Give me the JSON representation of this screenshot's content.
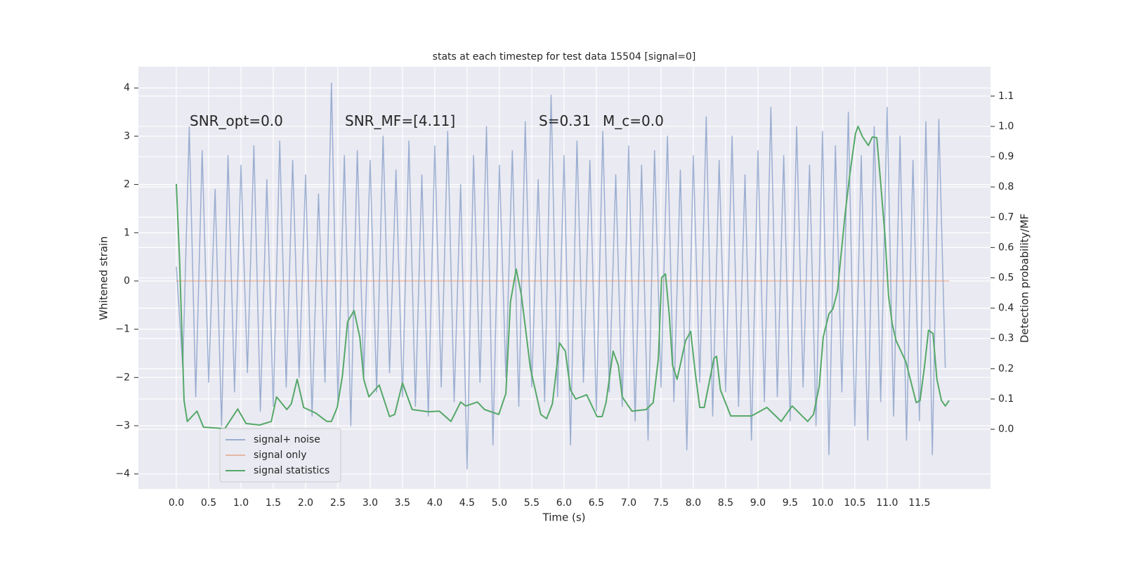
{
  "chart_data": {
    "type": "line",
    "title": "stats at each timestep for test data 15504 [signal=0]",
    "xlabel": "Time (s)",
    "ylabel": "Whitened strain",
    "y2label": "Detection probability/MF",
    "annotations": [
      "SNR_opt=0.0",
      "SNR_MF=[4.11]",
      "S=0.31",
      "M_c=0.0"
    ],
    "xlim": [
      -0.587,
      12.6
    ],
    "ylim": [
      -4.31,
      4.44
    ],
    "y2lim": [
      -0.197,
      1.197
    ],
    "xticks": [
      {
        "value": 0,
        "label": "0.0"
      },
      {
        "value": 0.5,
        "label": "0.5"
      },
      {
        "value": 1,
        "label": "1.0"
      },
      {
        "value": 1.5,
        "label": "1.5"
      },
      {
        "value": 2,
        "label": "2.0"
      },
      {
        "value": 2.5,
        "label": "2.5"
      },
      {
        "value": 3,
        "label": "3.0"
      },
      {
        "value": 3.5,
        "label": "3.5"
      },
      {
        "value": 4,
        "label": "4.0"
      },
      {
        "value": 4.5,
        "label": "4.5"
      },
      {
        "value": 5,
        "label": "5.0"
      },
      {
        "value": 5.5,
        "label": "5.5"
      },
      {
        "value": 6,
        "label": "6.0"
      },
      {
        "value": 6.5,
        "label": "6.5"
      },
      {
        "value": 7,
        "label": "7.0"
      },
      {
        "value": 7.5,
        "label": "7.5"
      },
      {
        "value": 8,
        "label": "8.0"
      },
      {
        "value": 8.5,
        "label": "8.5"
      },
      {
        "value": 9,
        "label": "9.0"
      },
      {
        "value": 9.5,
        "label": "9.5"
      },
      {
        "value": 10,
        "label": "10.0"
      },
      {
        "value": 10.5,
        "label": "10.5"
      },
      {
        "value": 11,
        "label": "11.0"
      },
      {
        "value": 11.5,
        "label": "11.5"
      }
    ],
    "yticks": [
      {
        "value": -4,
        "label": "−4"
      },
      {
        "value": -3,
        "label": "−3"
      },
      {
        "value": -2,
        "label": "−2"
      },
      {
        "value": -1,
        "label": "−1"
      },
      0,
      1,
      2,
      3,
      4
    ],
    "y2ticks": [
      {
        "value": 0,
        "label": "0.0"
      },
      {
        "value": 0.1,
        "label": "0.1"
      },
      {
        "value": 0.2,
        "label": "0.2"
      },
      {
        "value": 0.3,
        "label": "0.3"
      },
      {
        "value": 0.4,
        "label": "0.4"
      },
      {
        "value": 0.5,
        "label": "0.5"
      },
      {
        "value": 0.6,
        "label": "0.6"
      },
      {
        "value": 0.7,
        "label": "0.7"
      },
      {
        "value": 0.8,
        "label": "0.8"
      },
      {
        "value": 0.9,
        "label": "0.9"
      },
      {
        "value": 1,
        "label": "1.0"
      },
      {
        "value": 1.1,
        "label": "1.1"
      }
    ],
    "grid": true,
    "legend": "lower left",
    "series": [
      {
        "name": "signal+ noise",
        "color": "#4c72b0",
        "opacity": 0.5,
        "axis": "y",
        "x": [
          0.0,
          0.1,
          0.2,
          0.3,
          0.4,
          0.5,
          0.6,
          0.7,
          0.8,
          0.9,
          1.0,
          1.1,
          1.2,
          1.3,
          1.4,
          1.5,
          1.6,
          1.7,
          1.8,
          1.9,
          2.0,
          2.1,
          2.2,
          2.3,
          2.4,
          2.5,
          2.6,
          2.7,
          2.8,
          2.9,
          3.0,
          3.1,
          3.2,
          3.3,
          3.4,
          3.5,
          3.6,
          3.7,
          3.8,
          3.9,
          4.0,
          4.1,
          4.2,
          4.3,
          4.4,
          4.5,
          4.6,
          4.7,
          4.8,
          4.9,
          5.0,
          5.1,
          5.2,
          5.3,
          5.4,
          5.5,
          5.6,
          5.7,
          5.8,
          5.9,
          6.0,
          6.1,
          6.2,
          6.3,
          6.4,
          6.5,
          6.6,
          6.7,
          6.8,
          6.9,
          7.0,
          7.1,
          7.2,
          7.3,
          7.4,
          7.5,
          7.6,
          7.7,
          7.8,
          7.9,
          8.0,
          8.1,
          8.2,
          8.3,
          8.4,
          8.5,
          8.6,
          8.7,
          8.8,
          8.9,
          9.0,
          9.1,
          9.2,
          9.3,
          9.4,
          9.5,
          9.6,
          9.7,
          9.8,
          9.9,
          10.0,
          10.1,
          10.2,
          10.3,
          10.4,
          10.5,
          10.6,
          10.7,
          10.8,
          10.9,
          11.0,
          11.1,
          11.2,
          11.3,
          11.4,
          11.5,
          11.6,
          11.7,
          11.8,
          11.9
        ],
        "values": [
          0.3,
          -1.8,
          3.2,
          -2.4,
          2.7,
          -2.1,
          1.9,
          -3.0,
          2.6,
          -2.3,
          2.4,
          -1.9,
          2.8,
          -2.7,
          2.1,
          -2.6,
          2.9,
          -2.2,
          2.5,
          -2.0,
          2.2,
          -2.8,
          1.8,
          -2.1,
          4.1,
          -2.5,
          2.6,
          -3.0,
          2.7,
          -2.0,
          2.5,
          -2.3,
          3.0,
          -1.9,
          2.3,
          -2.4,
          2.9,
          -2.6,
          2.2,
          -2.8,
          2.8,
          -2.2,
          3.1,
          -2.5,
          2.0,
          -3.9,
          2.6,
          -2.1,
          3.2,
          -3.4,
          2.4,
          -2.0,
          2.7,
          -2.6,
          3.3,
          -2.2,
          2.1,
          -2.5,
          3.85,
          -2.4,
          2.6,
          -3.4,
          2.9,
          -2.1,
          2.5,
          -2.7,
          3.1,
          -2.3,
          2.2,
          -2.6,
          2.8,
          -2.9,
          2.4,
          -3.3,
          2.7,
          -2.2,
          3.0,
          -2.5,
          2.3,
          -3.5,
          2.6,
          -2.1,
          3.4,
          -2.8,
          2.5,
          -2.3,
          3.0,
          -2.6,
          2.2,
          -3.3,
          2.7,
          -2.5,
          3.6,
          -2.4,
          2.6,
          -2.9,
          3.2,
          -2.2,
          2.4,
          -3.0,
          3.1,
          -3.6,
          2.8,
          -2.3,
          3.5,
          -3.0,
          2.6,
          -3.3,
          3.2,
          -2.5,
          3.6,
          -2.8,
          3.0,
          -3.3,
          2.5,
          -2.9,
          3.3,
          -3.6,
          3.35,
          -1.8
        ]
      },
      {
        "name": "signal only",
        "color": "#dd8452",
        "opacity": 0.5,
        "axis": "y",
        "x": [
          0.0,
          11.96
        ],
        "values": [
          0,
          0
        ]
      },
      {
        "name": "signal statistics",
        "color": "#55a868",
        "opacity": 1,
        "axis": "y2",
        "x": [
          0.0,
          0.05,
          0.12,
          0.17,
          0.32,
          0.42,
          0.75,
          0.95,
          1.08,
          1.29,
          1.47,
          1.55,
          1.71,
          1.78,
          1.87,
          1.97,
          2.16,
          2.33,
          2.4,
          2.49,
          2.57,
          2.65,
          2.75,
          2.84,
          2.9,
          2.98,
          3.14,
          3.3,
          3.38,
          3.5,
          3.65,
          3.9,
          4.07,
          4.25,
          4.4,
          4.48,
          4.66,
          4.77,
          4.99,
          5.1,
          5.17,
          5.26,
          5.34,
          5.48,
          5.64,
          5.73,
          5.82,
          5.93,
          6.02,
          6.1,
          6.18,
          6.35,
          6.51,
          6.59,
          6.65,
          6.76,
          6.84,
          6.9,
          7.05,
          7.27,
          7.38,
          7.46,
          7.51,
          7.57,
          7.63,
          7.68,
          7.75,
          7.88,
          7.96,
          8.03,
          8.1,
          8.17,
          8.32,
          8.36,
          8.42,
          8.58,
          8.9,
          9.14,
          9.36,
          9.53,
          9.77,
          9.86,
          9.95,
          10.01,
          10.1,
          10.16,
          10.23,
          10.35,
          10.42,
          10.51,
          10.55,
          10.62,
          10.71,
          10.77,
          10.84,
          10.9,
          10.97,
          11.02,
          11.08,
          11.14,
          11.29,
          11.45,
          11.51,
          11.58,
          11.64,
          11.71,
          11.77,
          11.84,
          11.9,
          11.96
        ],
        "values": [
          0.81,
          0.56,
          0.095,
          0.026,
          0.06,
          0.007,
          0.002,
          0.067,
          0.019,
          0.014,
          0.026,
          0.107,
          0.065,
          0.084,
          0.165,
          0.072,
          0.053,
          0.026,
          0.026,
          0.072,
          0.176,
          0.355,
          0.392,
          0.304,
          0.165,
          0.107,
          0.146,
          0.042,
          0.049,
          0.153,
          0.065,
          0.058,
          0.06,
          0.026,
          0.09,
          0.077,
          0.09,
          0.065,
          0.049,
          0.118,
          0.42,
          0.529,
          0.443,
          0.2,
          0.049,
          0.035,
          0.084,
          0.285,
          0.258,
          0.13,
          0.1,
          0.114,
          0.042,
          0.042,
          0.088,
          0.258,
          0.211,
          0.107,
          0.06,
          0.065,
          0.088,
          0.234,
          0.501,
          0.513,
          0.374,
          0.211,
          0.165,
          0.292,
          0.323,
          0.188,
          0.072,
          0.072,
          0.234,
          0.241,
          0.13,
          0.044,
          0.044,
          0.072,
          0.026,
          0.077,
          0.026,
          0.049,
          0.142,
          0.304,
          0.381,
          0.397,
          0.455,
          0.71,
          0.838,
          0.977,
          1.0,
          0.965,
          0.937,
          0.965,
          0.963,
          0.814,
          0.629,
          0.443,
          0.346,
          0.292,
          0.223,
          0.088,
          0.095,
          0.211,
          0.327,
          0.316,
          0.165,
          0.095,
          0.077,
          0.095
        ]
      }
    ]
  }
}
